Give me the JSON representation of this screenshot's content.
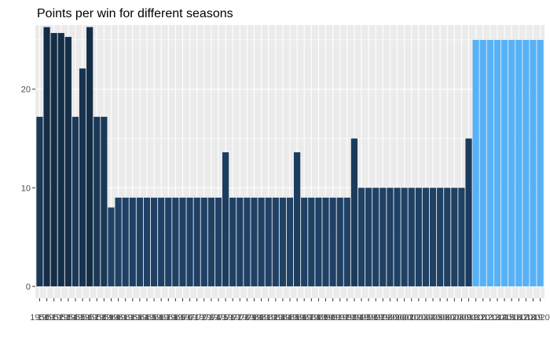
{
  "chart_data": {
    "type": "bar",
    "title": "Points per win for different seasons",
    "xlabel": "",
    "ylabel": "",
    "ylim": [
      0,
      26.5
    ],
    "yticks": [
      0,
      10,
      20
    ],
    "grid": true,
    "legend": "none",
    "colors": {
      "panel": "#ebebeb",
      "grid": "#ffffff",
      "highlight": "#56b1f7",
      "low": "#132b43",
      "high": "#56b1f7"
    },
    "categories": [
      "1950",
      "1951",
      "1952",
      "1953",
      "1954",
      "1955",
      "1956",
      "1957",
      "1958",
      "1959",
      "1960",
      "1961",
      "1962",
      "1963",
      "1964",
      "1965",
      "1966",
      "1967",
      "1968",
      "1969",
      "1970",
      "1971",
      "1972",
      "1973",
      "1974",
      "1975",
      "1976",
      "1977",
      "1978",
      "1979",
      "1980",
      "1981",
      "1982",
      "1983",
      "1984",
      "1985",
      "1986",
      "1987",
      "1988",
      "1989",
      "1990",
      "1991",
      "1992",
      "1993",
      "1994",
      "1995",
      "1996",
      "1997",
      "1998",
      "1999",
      "2000",
      "2001",
      "2002",
      "2003",
      "2004",
      "2005",
      "2006",
      "2007",
      "2008",
      "2009",
      "2010",
      "2011",
      "2012",
      "2013",
      "2014",
      "2015",
      "2016",
      "2017",
      "2018",
      "2019",
      "2020"
    ],
    "values": [
      17.2,
      26.3,
      25.7,
      25.7,
      25.3,
      17.2,
      22.1,
      26.3,
      17.2,
      17.2,
      8.0,
      9.0,
      9.0,
      9.0,
      9.0,
      9.0,
      9.0,
      9.0,
      9.0,
      9.0,
      9.0,
      9.0,
      9.0,
      9.0,
      9.0,
      9.0,
      13.6,
      9.0,
      9.0,
      9.0,
      9.0,
      9.0,
      9.0,
      9.0,
      9.0,
      9.0,
      13.6,
      9.0,
      9.0,
      9.0,
      9.0,
      9.0,
      9.0,
      9.0,
      15.0,
      10.0,
      10.0,
      10.0,
      10.0,
      10.0,
      10.0,
      10.0,
      10.0,
      10.0,
      10.0,
      10.0,
      10.0,
      10.0,
      10.0,
      10.0,
      15.0,
      25.0,
      25.0,
      25.0,
      25.0,
      25.0,
      25.0,
      25.0,
      25.0,
      25.0,
      25.0
    ],
    "highlighted": [
      false,
      false,
      false,
      false,
      false,
      false,
      false,
      false,
      false,
      false,
      false,
      false,
      false,
      false,
      false,
      false,
      false,
      false,
      false,
      false,
      false,
      false,
      false,
      false,
      false,
      false,
      false,
      false,
      false,
      false,
      false,
      false,
      false,
      false,
      false,
      false,
      false,
      false,
      false,
      false,
      false,
      false,
      false,
      false,
      false,
      false,
      false,
      false,
      false,
      false,
      false,
      false,
      false,
      false,
      false,
      false,
      false,
      false,
      false,
      false,
      false,
      true,
      true,
      true,
      true,
      true,
      true,
      true,
      true,
      true,
      true
    ]
  }
}
